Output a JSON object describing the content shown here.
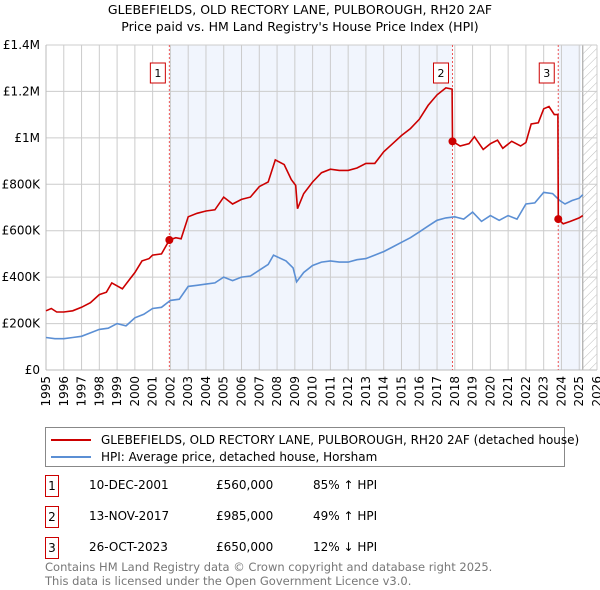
{
  "chart_data": {
    "type": "line",
    "title": "GLEBEFIELDS, OLD RECTORY LANE, PULBOROUGH, RH20 2AF",
    "subtitle": "Price paid vs. HM Land Registry's House Price Index (HPI)",
    "xlim": [
      1995,
      2026
    ],
    "ylim": [
      0,
      1400000
    ],
    "x_ticks": [
      "1995",
      "1996",
      "1997",
      "1998",
      "1999",
      "2000",
      "2001",
      "2002",
      "2003",
      "2004",
      "2005",
      "2006",
      "2007",
      "2008",
      "2009",
      "2010",
      "2011",
      "2012",
      "2013",
      "2014",
      "2015",
      "2016",
      "2017",
      "2018",
      "2019",
      "2020",
      "2021",
      "2022",
      "2023",
      "2024",
      "2025",
      "2026"
    ],
    "y_ticks": [
      {
        "v": 0,
        "label": "£0"
      },
      {
        "v": 200000,
        "label": "£200K"
      },
      {
        "v": 400000,
        "label": "£400K"
      },
      {
        "v": 600000,
        "label": "£600K"
      },
      {
        "v": 800000,
        "label": "£800K"
      },
      {
        "v": 1000000,
        "label": "£1M"
      },
      {
        "v": 1200000,
        "label": "£1.2M"
      },
      {
        "v": 1400000,
        "label": "£1.4M"
      }
    ],
    "grid": true,
    "shaded_ranges": [
      [
        2001.94,
        2017.87
      ],
      [
        2023.82,
        2025.1
      ]
    ],
    "forecast_hatch_from": 2025.2,
    "series": [
      {
        "name": "GLEBEFIELDS, OLD RECTORY LANE, PULBOROUGH, RH20 2AF (detached house)",
        "color": "#cc0000",
        "points": [
          [
            1995,
            255000
          ],
          [
            1995.3,
            265000
          ],
          [
            1995.6,
            250000
          ],
          [
            1996,
            250000
          ],
          [
            1996.5,
            255000
          ],
          [
            1997,
            270000
          ],
          [
            1997.5,
            290000
          ],
          [
            1998,
            325000
          ],
          [
            1998.4,
            335000
          ],
          [
            1998.7,
            375000
          ],
          [
            1999.3,
            350000
          ],
          [
            1999.7,
            390000
          ],
          [
            2000,
            420000
          ],
          [
            2000.4,
            470000
          ],
          [
            2000.8,
            480000
          ],
          [
            2001,
            495000
          ],
          [
            2001.5,
            500000
          ],
          [
            2001.94,
            560000
          ],
          [
            2002.3,
            570000
          ],
          [
            2002.6,
            565000
          ],
          [
            2003,
            660000
          ],
          [
            2003.5,
            675000
          ],
          [
            2004,
            685000
          ],
          [
            2004.5,
            690000
          ],
          [
            2005,
            745000
          ],
          [
            2005.5,
            715000
          ],
          [
            2006,
            735000
          ],
          [
            2006.5,
            745000
          ],
          [
            2007,
            790000
          ],
          [
            2007.5,
            810000
          ],
          [
            2007.9,
            905000
          ],
          [
            2008.4,
            885000
          ],
          [
            2008.8,
            820000
          ],
          [
            2009.05,
            795000
          ],
          [
            2009.15,
            695000
          ],
          [
            2009.5,
            760000
          ],
          [
            2010,
            810000
          ],
          [
            2010.5,
            850000
          ],
          [
            2011,
            865000
          ],
          [
            2011.5,
            860000
          ],
          [
            2012,
            860000
          ],
          [
            2012.5,
            870000
          ],
          [
            2013,
            890000
          ],
          [
            2013.5,
            890000
          ],
          [
            2014,
            940000
          ],
          [
            2014.5,
            975000
          ],
          [
            2015,
            1010000
          ],
          [
            2015.5,
            1040000
          ],
          [
            2016,
            1080000
          ],
          [
            2016.5,
            1140000
          ],
          [
            2017,
            1185000
          ],
          [
            2017.5,
            1215000
          ],
          [
            2017.85,
            1210000
          ],
          [
            2017.87,
            985000
          ],
          [
            2018.3,
            965000
          ],
          [
            2018.8,
            975000
          ],
          [
            2019.1,
            1005000
          ],
          [
            2019.6,
            950000
          ],
          [
            2020,
            975000
          ],
          [
            2020.4,
            990000
          ],
          [
            2020.7,
            955000
          ],
          [
            2021.2,
            985000
          ],
          [
            2021.7,
            965000
          ],
          [
            2022,
            980000
          ],
          [
            2022.3,
            1060000
          ],
          [
            2022.7,
            1065000
          ],
          [
            2023,
            1125000
          ],
          [
            2023.3,
            1135000
          ],
          [
            2023.6,
            1100000
          ],
          [
            2023.8,
            1100000
          ],
          [
            2023.82,
            650000
          ],
          [
            2024.1,
            630000
          ],
          [
            2024.5,
            640000
          ],
          [
            2025,
            655000
          ],
          [
            2025.2,
            665000
          ]
        ]
      },
      {
        "name": "HPI: Average price, detached house, Horsham",
        "color": "#5b8fd4",
        "points": [
          [
            1995,
            140000
          ],
          [
            1995.5,
            135000
          ],
          [
            1996,
            135000
          ],
          [
            1996.5,
            140000
          ],
          [
            1997,
            145000
          ],
          [
            1997.5,
            160000
          ],
          [
            1998,
            175000
          ],
          [
            1998.5,
            180000
          ],
          [
            1999,
            200000
          ],
          [
            1999.5,
            190000
          ],
          [
            2000,
            225000
          ],
          [
            2000.5,
            240000
          ],
          [
            2001,
            265000
          ],
          [
            2001.5,
            270000
          ],
          [
            2002,
            300000
          ],
          [
            2002.5,
            305000
          ],
          [
            2003,
            360000
          ],
          [
            2003.5,
            365000
          ],
          [
            2004,
            370000
          ],
          [
            2004.5,
            375000
          ],
          [
            2005,
            400000
          ],
          [
            2005.5,
            385000
          ],
          [
            2006,
            400000
          ],
          [
            2006.5,
            405000
          ],
          [
            2007,
            430000
          ],
          [
            2007.5,
            455000
          ],
          [
            2007.8,
            495000
          ],
          [
            2008.5,
            470000
          ],
          [
            2008.9,
            440000
          ],
          [
            2009.1,
            380000
          ],
          [
            2009.5,
            420000
          ],
          [
            2010,
            450000
          ],
          [
            2010.5,
            465000
          ],
          [
            2011,
            470000
          ],
          [
            2011.5,
            465000
          ],
          [
            2012,
            465000
          ],
          [
            2012.5,
            475000
          ],
          [
            2013,
            480000
          ],
          [
            2013.5,
            495000
          ],
          [
            2014,
            510000
          ],
          [
            2014.5,
            530000
          ],
          [
            2015,
            550000
          ],
          [
            2015.5,
            570000
          ],
          [
            2016,
            595000
          ],
          [
            2016.5,
            620000
          ],
          [
            2017,
            645000
          ],
          [
            2017.5,
            655000
          ],
          [
            2018,
            660000
          ],
          [
            2018.5,
            650000
          ],
          [
            2019,
            680000
          ],
          [
            2019.5,
            640000
          ],
          [
            2020,
            665000
          ],
          [
            2020.5,
            645000
          ],
          [
            2021,
            665000
          ],
          [
            2021.5,
            650000
          ],
          [
            2022,
            715000
          ],
          [
            2022.5,
            720000
          ],
          [
            2023,
            765000
          ],
          [
            2023.5,
            760000
          ],
          [
            2023.9,
            730000
          ],
          [
            2024.2,
            715000
          ],
          [
            2024.6,
            730000
          ],
          [
            2025,
            740000
          ],
          [
            2025.2,
            755000
          ]
        ]
      }
    ],
    "sales": [
      {
        "label": "1",
        "x": 2001.94,
        "price": 560000
      },
      {
        "label": "2",
        "x": 2017.87,
        "price": 985000
      },
      {
        "label": "3",
        "x": 2023.82,
        "price": 650000
      }
    ]
  },
  "legend": {
    "property": "GLEBEFIELDS, OLD RECTORY LANE, PULBOROUGH, RH20 2AF (detached house)",
    "hpi": "HPI: Average price, detached house, Horsham"
  },
  "transactions": [
    {
      "num": "1",
      "date": "10-DEC-2001",
      "price": "£560,000",
      "hpi": "85% ↑ HPI"
    },
    {
      "num": "2",
      "date": "13-NOV-2017",
      "price": "£985,000",
      "hpi": "49% ↑ HPI"
    },
    {
      "num": "3",
      "date": "26-OCT-2023",
      "price": "£650,000",
      "hpi": "12% ↓ HPI"
    }
  ],
  "footer": {
    "line1": "Contains HM Land Registry data © Crown copyright and database right 2025.",
    "line2": "This data is licensed under the Open Government Licence v3.0."
  }
}
